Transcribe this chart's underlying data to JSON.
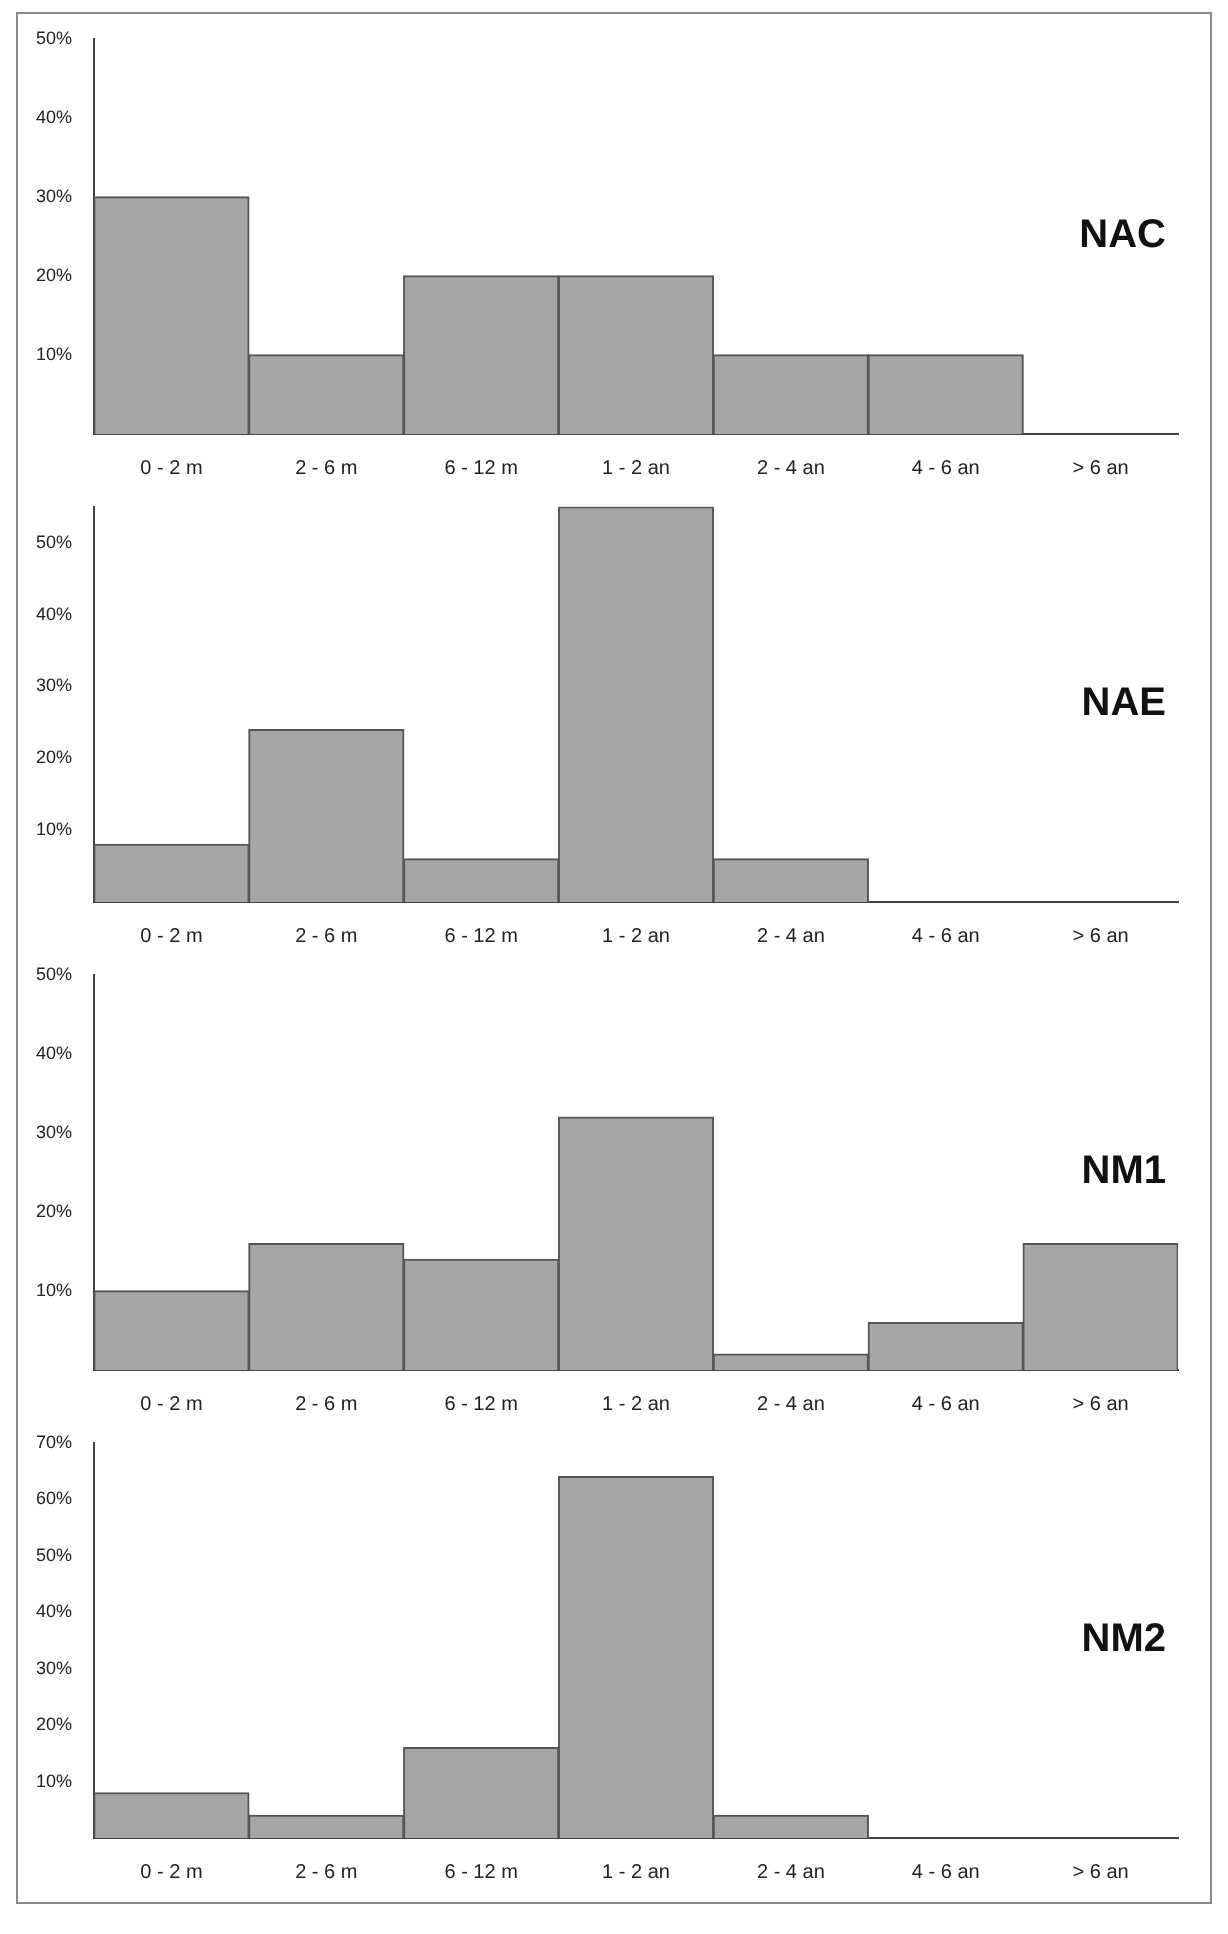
{
  "chart_data": [
    {
      "type": "bar",
      "title": "NAC",
      "categories": [
        "0 - 2 m",
        "2 - 6 m",
        "6 - 12 m",
        "1 - 2 an",
        "2 - 4 an",
        "4 - 6 an",
        "> 6 an"
      ],
      "values": [
        30,
        10,
        20,
        20,
        10,
        10,
        0
      ],
      "color": "#a6a6a6",
      "ylim": [
        0,
        50
      ],
      "yticks": [
        {
          "value": 10,
          "label": "10%"
        },
        {
          "value": 20,
          "label": "20%"
        },
        {
          "value": 30,
          "label": "30%"
        },
        {
          "value": 40,
          "label": "40%"
        },
        {
          "value": 50,
          "label": "50%"
        }
      ],
      "grid": false,
      "legend": false
    },
    {
      "type": "bar",
      "title": "NAE",
      "categories": [
        "0 - 2 m",
        "2 - 6 m",
        "6 - 12 m",
        "1 - 2 an",
        "2 - 4 an",
        "4 - 6 an",
        "> 6 an"
      ],
      "values": [
        8,
        24,
        6,
        55,
        6,
        0,
        0
      ],
      "color": "#a6a6a6",
      "ylim": [
        0,
        55
      ],
      "yticks": [
        {
          "value": 10,
          "label": "10%"
        },
        {
          "value": 20,
          "label": "20%"
        },
        {
          "value": 30,
          "label": "30%"
        },
        {
          "value": 40,
          "label": "40%"
        },
        {
          "value": 50,
          "label": "50%"
        }
      ],
      "grid": false,
      "legend": false
    },
    {
      "type": "bar",
      "title": "NM1",
      "categories": [
        "0 - 2 m",
        "2 - 6 m",
        "6 - 12 m",
        "1 - 2 an",
        "2 - 4 an",
        "4 - 6 an",
        "> 6 an"
      ],
      "values": [
        10,
        16,
        14,
        32,
        2,
        6,
        16
      ],
      "color": "#a6a6a6",
      "ylim": [
        0,
        50
      ],
      "yticks": [
        {
          "value": 10,
          "label": "10%"
        },
        {
          "value": 20,
          "label": "20%"
        },
        {
          "value": 30,
          "label": "30%"
        },
        {
          "value": 40,
          "label": "40%"
        },
        {
          "value": 50,
          "label": "50%"
        }
      ],
      "grid": false,
      "legend": false
    },
    {
      "type": "bar",
      "title": "NM2",
      "categories": [
        "0 - 2 m",
        "2 - 6 m",
        "6 - 12 m",
        "1 - 2 an",
        "2 - 4 an",
        "4 - 6 an",
        "> 6 an"
      ],
      "values": [
        8,
        4,
        16,
        64,
        4,
        0,
        0
      ],
      "color": "#a6a6a6",
      "ylim": [
        0,
        70
      ],
      "yticks": [
        {
          "value": 10,
          "label": "10%"
        },
        {
          "value": 20,
          "label": "20%"
        },
        {
          "value": 30,
          "label": "30%"
        },
        {
          "value": 40,
          "label": "40%"
        },
        {
          "value": 50,
          "label": "50%"
        },
        {
          "value": 60,
          "label": "60%"
        },
        {
          "value": 70,
          "label": "70%"
        }
      ],
      "grid": false,
      "legend": false
    }
  ]
}
